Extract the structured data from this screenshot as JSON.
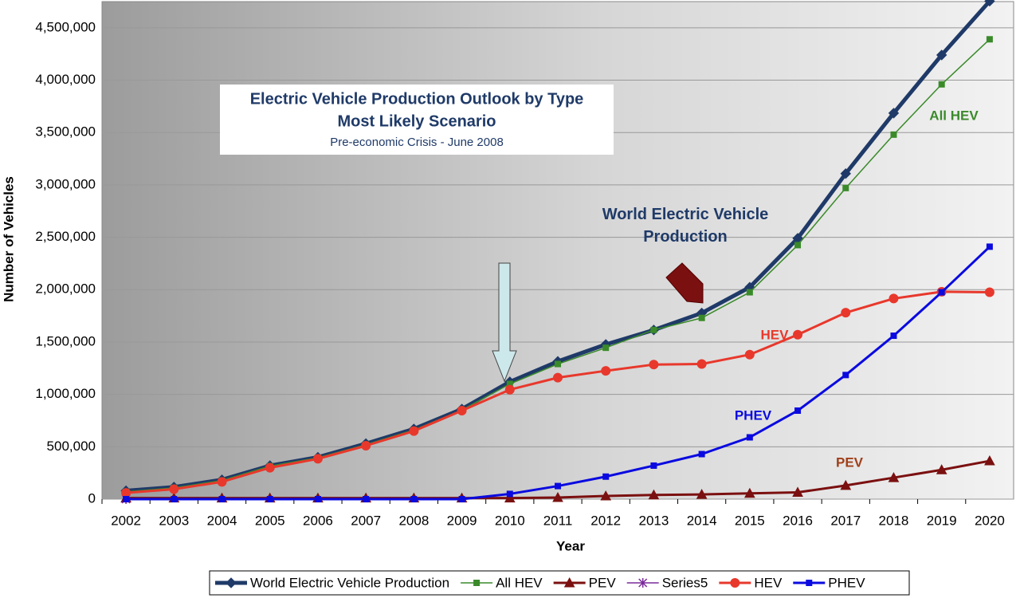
{
  "chart_data": {
    "type": "line",
    "title": "Electric Vehicle Production Outlook by Type",
    "subtitle": "Most Likely Scenario",
    "note": "Pre-economic Crisis - June 2008",
    "x_label": "Year",
    "y_label": "Number of Vehicles",
    "annotations": [
      "World Electric Vehicle Production",
      "All HEV",
      "HEV",
      "PHEV",
      "PEV"
    ],
    "categories": [
      "2002",
      "2003",
      "2004",
      "2005",
      "2006",
      "2007",
      "2008",
      "2009",
      "2010",
      "2011",
      "2012",
      "2013",
      "2014",
      "2015",
      "2016",
      "2017",
      "2018",
      "2019",
      "2020"
    ],
    "ylim": [
      0,
      4750000
    ],
    "yticks": [
      0,
      {
        "value": 500000,
        "label": "500,000"
      },
      {
        "value": 1000000,
        "label": "1,000,000"
      },
      {
        "value": 1500000,
        "label": "1,500,000"
      },
      {
        "value": 2000000,
        "label": "2,000,000"
      },
      {
        "value": 2500000,
        "label": "2,500,000"
      },
      {
        "value": 3000000,
        "label": "3,000,000"
      },
      {
        "value": 3500000,
        "label": "3,500,000"
      },
      {
        "value": 4000000,
        "label": "4,000,000"
      },
      {
        "value": 4500000,
        "label": "4,500,000"
      }
    ],
    "grid": true,
    "legend": "bottom",
    "series": [
      {
        "name": "World Electric Vehicle Production",
        "color": "#1f3a68",
        "marker": "diamond",
        "values": [
          80000,
          115000,
          185000,
          320000,
          400000,
          530000,
          670000,
          860000,
          1120000,
          1315000,
          1477000,
          1615000,
          1777000,
          2023000,
          2490000,
          3108000,
          3685000,
          4240000,
          4754000
        ]
      },
      {
        "name": "All HEV",
        "color": "#3a8a2a",
        "marker": "square",
        "values": [
          70000,
          108000,
          178000,
          315000,
          395000,
          520000,
          660000,
          850000,
          1100000,
          1290000,
          1445000,
          1615000,
          1730000,
          1975000,
          2425000,
          2970000,
          3480000,
          3960000,
          4390000
        ]
      },
      {
        "name": "PEV",
        "color": "#7b1010",
        "marker": "triangle",
        "values": [
          10000,
          10000,
          10000,
          10000,
          10000,
          10000,
          10000,
          10000,
          10000,
          15000,
          30000,
          40000,
          45000,
          55000,
          65000,
          130000,
          205000,
          280000,
          365000
        ]
      },
      {
        "name": "Series5",
        "color": "#7a2a9a",
        "marker": "star",
        "values": [
          0,
          null,
          null,
          null,
          null,
          null,
          null,
          null,
          null,
          null,
          null,
          null,
          null,
          null,
          null,
          null,
          null,
          null,
          null
        ]
      },
      {
        "name": "HEV",
        "color": "#e8382c",
        "marker": "circle",
        "values": [
          60000,
          95000,
          165000,
          300000,
          385000,
          510000,
          650000,
          845000,
          1045000,
          1160000,
          1225000,
          1285000,
          1290000,
          1380000,
          1570000,
          1780000,
          1915000,
          1980000,
          1975000
        ]
      },
      {
        "name": "PHEV",
        "color": "#0a0ae0",
        "marker": "square",
        "values": [
          0,
          0,
          0,
          0,
          0,
          0,
          0,
          0,
          50000,
          125000,
          215000,
          320000,
          430000,
          590000,
          845000,
          1185000,
          1560000,
          1975000,
          2410000
        ]
      }
    ]
  }
}
